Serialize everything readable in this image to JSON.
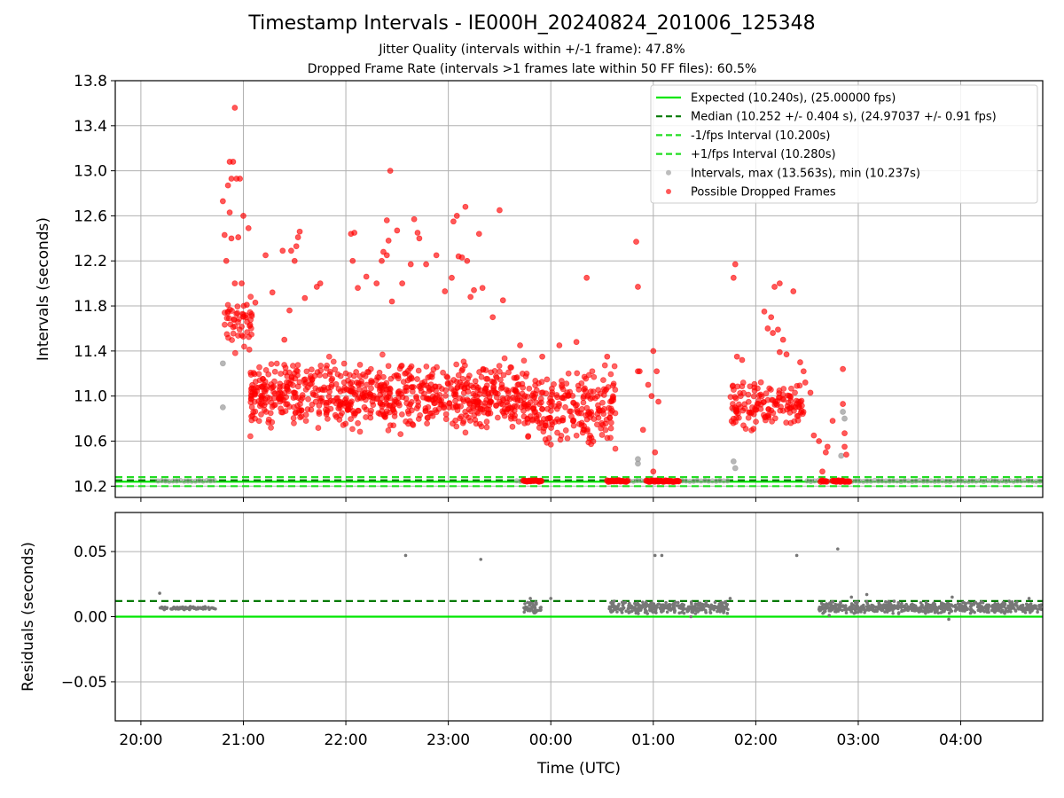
{
  "figure": {
    "title": "Timestamp Intervals - IE000H_20240824_201006_125348",
    "subtitle_jitter": "Jitter Quality (intervals within +/-1 frame): 47.8%",
    "subtitle_dropped": "Dropped Frame Rate (intervals >1 frames late within 50 FF files): 60.5%"
  },
  "colors": {
    "expected": "#00e600",
    "median": "#007a00",
    "fps_band": "#22dd22",
    "intervals": "#999999",
    "dropped": "#ff0000",
    "residuals": "#777777",
    "grid": "#b0b0b0"
  },
  "chart_data": [
    {
      "type": "scatter",
      "panel": "intervals",
      "ylabel": "Intervals (seconds)",
      "xlabel": "",
      "ylim": [
        10.1,
        13.8
      ],
      "yticks": [
        "10.2",
        "10.6",
        "11.0",
        "11.4",
        "11.8",
        "12.2",
        "12.6",
        "13.0",
        "13.4",
        "13.8"
      ],
      "ytick_values": [
        10.2,
        10.6,
        11.0,
        11.4,
        11.8,
        12.2,
        12.6,
        13.0,
        13.4,
        13.8
      ],
      "xlim": [
        "19:45",
        "04:48"
      ],
      "x_axis_note": "time of day UTC, continuing past midnight",
      "grid": true,
      "legend_position": "top-right",
      "reference_lines": [
        {
          "name": "Expected (10.240s), (25.00000 fps)",
          "y": 10.24,
          "style": "solid"
        },
        {
          "name": "Median (10.252 +/- 0.404 s), (24.97037 +/- 0.91 fps)",
          "y": 10.252,
          "style": "dashed"
        },
        {
          "name": "-1/fps Interval (10.200s)",
          "y": 10.2,
          "style": "dashed"
        },
        {
          "name": "+1/fps Interval (10.280s)",
          "y": 10.28,
          "style": "dashed"
        }
      ],
      "series": [
        {
          "name": "Intervals, max (13.563s), min (10.237s)",
          "max": 13.563,
          "min": 10.237,
          "baseline_segments": [
            {
              "start": "20:10",
              "end": "20:45",
              "y": 10.247
            },
            {
              "start": "23:40",
              "end": "23:55",
              "y": 10.245
            },
            {
              "start": "00:33",
              "end": "01:45",
              "y": 10.246
            },
            {
              "start": "02:30",
              "end": "04:48",
              "y": 10.246
            }
          ],
          "points": [
            {
              "t": "20:48",
              "y": 11.29
            },
            {
              "t": "20:48",
              "y": 10.9
            },
            {
              "t": "00:51",
              "y": 10.44
            },
            {
              "t": "00:51",
              "y": 10.4
            },
            {
              "t": "01:47",
              "y": 10.88
            },
            {
              "t": "01:47",
              "y": 10.42
            },
            {
              "t": "01:48",
              "y": 10.36
            },
            {
              "t": "02:50",
              "y": 10.47
            },
            {
              "t": "02:51",
              "y": 10.86
            },
            {
              "t": "02:52",
              "y": 10.8
            }
          ]
        },
        {
          "name": "Possible Dropped Frames",
          "points": [
            {
              "t": "20:48",
              "y": 12.73
            },
            {
              "t": "20:49",
              "y": 12.43
            },
            {
              "t": "20:51",
              "y": 12.87
            },
            {
              "t": "20:52",
              "y": 13.08
            },
            {
              "t": "20:53",
              "y": 12.93
            },
            {
              "t": "20:54",
              "y": 13.08
            },
            {
              "t": "20:55",
              "y": 13.56
            },
            {
              "t": "20:56",
              "y": 12.93
            },
            {
              "t": "20:58",
              "y": 12.93
            },
            {
              "t": "21:00",
              "y": 12.6
            },
            {
              "t": "21:03",
              "y": 12.49
            },
            {
              "t": "20:50",
              "y": 12.2
            },
            {
              "t": "20:52",
              "y": 12.63
            },
            {
              "t": "20:53",
              "y": 12.4
            },
            {
              "t": "20:55",
              "y": 12.0
            },
            {
              "t": "20:57",
              "y": 12.41
            },
            {
              "t": "20:59",
              "y": 12.0
            },
            {
              "t": "21:02",
              "y": 11.81
            },
            {
              "t": "21:07",
              "y": 11.83
            },
            {
              "t": "21:13",
              "y": 12.25
            },
            {
              "t": "21:17",
              "y": 11.92
            },
            {
              "t": "21:23",
              "y": 12.29
            },
            {
              "t": "21:28",
              "y": 12.29
            },
            {
              "t": "21:30",
              "y": 12.2
            },
            {
              "t": "21:32",
              "y": 12.41
            },
            {
              "t": "21:33",
              "y": 12.46
            },
            {
              "t": "21:31",
              "y": 12.33
            },
            {
              "t": "21:27",
              "y": 11.76
            },
            {
              "t": "21:24",
              "y": 11.5
            },
            {
              "t": "21:36",
              "y": 11.87
            },
            {
              "t": "21:43",
              "y": 11.97
            },
            {
              "t": "21:45",
              "y": 12.0
            },
            {
              "t": "22:03",
              "y": 12.44
            },
            {
              "t": "22:05",
              "y": 12.45
            },
            {
              "t": "22:04",
              "y": 12.2
            },
            {
              "t": "22:07",
              "y": 11.96
            },
            {
              "t": "22:12",
              "y": 12.06
            },
            {
              "t": "22:18",
              "y": 12.0
            },
            {
              "t": "22:21",
              "y": 12.2
            },
            {
              "t": "22:22",
              "y": 12.28
            },
            {
              "t": "22:24",
              "y": 12.56
            },
            {
              "t": "22:25",
              "y": 12.38
            },
            {
              "t": "22:26",
              "y": 13.0
            },
            {
              "t": "22:24",
              "y": 12.25
            },
            {
              "t": "22:27",
              "y": 11.84
            },
            {
              "t": "22:30",
              "y": 12.47
            },
            {
              "t": "22:33",
              "y": 12.0
            },
            {
              "t": "22:38",
              "y": 12.17
            },
            {
              "t": "22:40",
              "y": 12.57
            },
            {
              "t": "22:42",
              "y": 12.45
            },
            {
              "t": "22:43",
              "y": 12.4
            },
            {
              "t": "22:47",
              "y": 12.17
            },
            {
              "t": "22:53",
              "y": 12.25
            },
            {
              "t": "22:58",
              "y": 11.93
            },
            {
              "t": "23:02",
              "y": 12.05
            },
            {
              "t": "23:03",
              "y": 12.55
            },
            {
              "t": "23:05",
              "y": 12.6
            },
            {
              "t": "23:06",
              "y": 12.24
            },
            {
              "t": "23:08",
              "y": 12.23
            },
            {
              "t": "23:10",
              "y": 12.68
            },
            {
              "t": "23:11",
              "y": 12.2
            },
            {
              "t": "23:13",
              "y": 11.88
            },
            {
              "t": "23:15",
              "y": 11.94
            },
            {
              "t": "23:18",
              "y": 12.44
            },
            {
              "t": "23:20",
              "y": 11.96
            },
            {
              "t": "23:30",
              "y": 12.65
            },
            {
              "t": "23:32",
              "y": 11.85
            },
            {
              "t": "23:26",
              "y": 11.7
            },
            {
              "t": "23:42",
              "y": 11.45
            },
            {
              "t": "23:55",
              "y": 11.35
            },
            {
              "t": "00:05",
              "y": 11.45
            },
            {
              "t": "00:15",
              "y": 11.48
            },
            {
              "t": "00:21",
              "y": 12.05
            },
            {
              "t": "00:33",
              "y": 11.35
            },
            {
              "t": "00:50",
              "y": 12.37
            },
            {
              "t": "00:51",
              "y": 11.97
            },
            {
              "t": "00:51",
              "y": 11.22
            },
            {
              "t": "00:52",
              "y": 11.22
            },
            {
              "t": "00:54",
              "y": 10.7
            },
            {
              "t": "00:57",
              "y": 11.1
            },
            {
              "t": "00:59",
              "y": 11.0
            },
            {
              "t": "01:00",
              "y": 11.4
            },
            {
              "t": "01:02",
              "y": 11.22
            },
            {
              "t": "01:03",
              "y": 10.95
            },
            {
              "t": "01:01",
              "y": 10.5
            },
            {
              "t": "01:00",
              "y": 10.33
            },
            {
              "t": "01:48",
              "y": 12.17
            },
            {
              "t": "01:47",
              "y": 12.05
            },
            {
              "t": "01:49",
              "y": 11.35
            },
            {
              "t": "01:52",
              "y": 11.32
            },
            {
              "t": "02:05",
              "y": 11.75
            },
            {
              "t": "02:07",
              "y": 11.6
            },
            {
              "t": "02:09",
              "y": 11.7
            },
            {
              "t": "02:10",
              "y": 11.56
            },
            {
              "t": "02:11",
              "y": 11.97
            },
            {
              "t": "02:13",
              "y": 11.59
            },
            {
              "t": "02:14",
              "y": 11.39
            },
            {
              "t": "02:16",
              "y": 11.5
            },
            {
              "t": "02:18",
              "y": 11.37
            },
            {
              "t": "02:14",
              "y": 12.0
            },
            {
              "t": "02:22",
              "y": 11.93
            },
            {
              "t": "02:26",
              "y": 11.3
            },
            {
              "t": "02:28",
              "y": 11.22
            },
            {
              "t": "02:29",
              "y": 11.12
            },
            {
              "t": "02:32",
              "y": 11.03
            },
            {
              "t": "02:34",
              "y": 10.65
            },
            {
              "t": "02:37",
              "y": 10.6
            },
            {
              "t": "02:39",
              "y": 10.33
            },
            {
              "t": "02:41",
              "y": 10.5
            },
            {
              "t": "02:42",
              "y": 10.55
            },
            {
              "t": "02:45",
              "y": 10.78
            },
            {
              "t": "02:51",
              "y": 11.24
            },
            {
              "t": "02:52",
              "y": 10.67
            },
            {
              "t": "02:52",
              "y": 10.55
            },
            {
              "t": "02:53",
              "y": 10.48
            },
            {
              "t": "02:51",
              "y": 10.93
            }
          ],
          "clusters": [
            {
              "start": "20:49",
              "end": "21:05",
              "ymin": 11.3,
              "ymax": 12.0,
              "count": 50
            },
            {
              "start": "21:04",
              "end": "23:45",
              "ymin": 10.6,
              "ymax": 11.4,
              "count": 750
            },
            {
              "start": "23:44",
              "end": "00:38",
              "ymin": 10.45,
              "ymax": 11.35,
              "count": 230
            },
            {
              "start": "01:45",
              "end": "02:28",
              "ymin": 10.6,
              "ymax": 11.25,
              "count": 140
            }
          ],
          "baseline_segments": [
            {
              "start": "23:44",
              "end": "23:55",
              "y": 10.245
            },
            {
              "start": "00:33",
              "end": "00:45",
              "y": 10.245
            },
            {
              "start": "00:56",
              "end": "01:15",
              "y": 10.245
            },
            {
              "start": "02:38",
              "end": "02:42",
              "y": 10.245
            },
            {
              "start": "02:45",
              "end": "02:55",
              "y": 10.245
            }
          ]
        }
      ]
    },
    {
      "type": "scatter",
      "panel": "residuals",
      "ylabel": "Residuals (seconds)",
      "xlabel": "Time (UTC)",
      "ylim": [
        -0.08,
        0.08
      ],
      "yticks": [
        "−0.05",
        "0.00",
        "0.05"
      ],
      "ytick_values": [
        -0.05,
        0.0,
        0.05
      ],
      "xticks": [
        "20:00",
        "21:00",
        "22:00",
        "23:00",
        "00:00",
        "01:00",
        "02:00",
        "03:00",
        "04:00"
      ],
      "xlim": [
        "19:45",
        "04:48"
      ],
      "grid": true,
      "reference_lines": [
        {
          "y": 0.0,
          "style": "solid",
          "color_key": "expected"
        },
        {
          "y": 0.012,
          "style": "dashed",
          "color_key": "median"
        }
      ],
      "series": [
        {
          "points": [
            {
              "t": "20:11",
              "y": 0.018
            },
            {
              "t": "22:35",
              "y": 0.047
            },
            {
              "t": "23:19",
              "y": 0.044
            },
            {
              "t": "01:01",
              "y": 0.047
            },
            {
              "t": "01:05",
              "y": 0.047
            },
            {
              "t": "02:24",
              "y": 0.047
            },
            {
              "t": "02:48",
              "y": 0.052
            },
            {
              "t": "23:48",
              "y": 0.014
            },
            {
              "t": "00:00",
              "y": 0.014
            },
            {
              "t": "01:45",
              "y": 0.014
            },
            {
              "t": "02:56",
              "y": 0.015
            },
            {
              "t": "03:05",
              "y": 0.017
            },
            {
              "t": "03:55",
              "y": 0.015
            },
            {
              "t": "04:40",
              "y": 0.014
            },
            {
              "t": "03:53",
              "y": -0.002
            },
            {
              "t": "01:22",
              "y": 0.0
            },
            {
              "t": "02:43",
              "y": 0.001
            }
          ],
          "bands": [
            {
              "start": "20:11",
              "end": "20:45",
              "ymin": 0.005,
              "ymax": 0.008,
              "count": 80
            },
            {
              "start": "23:44",
              "end": "23:55",
              "ymin": 0.002,
              "ymax": 0.012,
              "count": 40
            },
            {
              "start": "00:34",
              "end": "01:44",
              "ymin": 0.002,
              "ymax": 0.012,
              "count": 320
            },
            {
              "start": "02:37",
              "end": "04:48",
              "ymin": 0.002,
              "ymax": 0.012,
              "count": 600
            }
          ]
        }
      ]
    }
  ]
}
